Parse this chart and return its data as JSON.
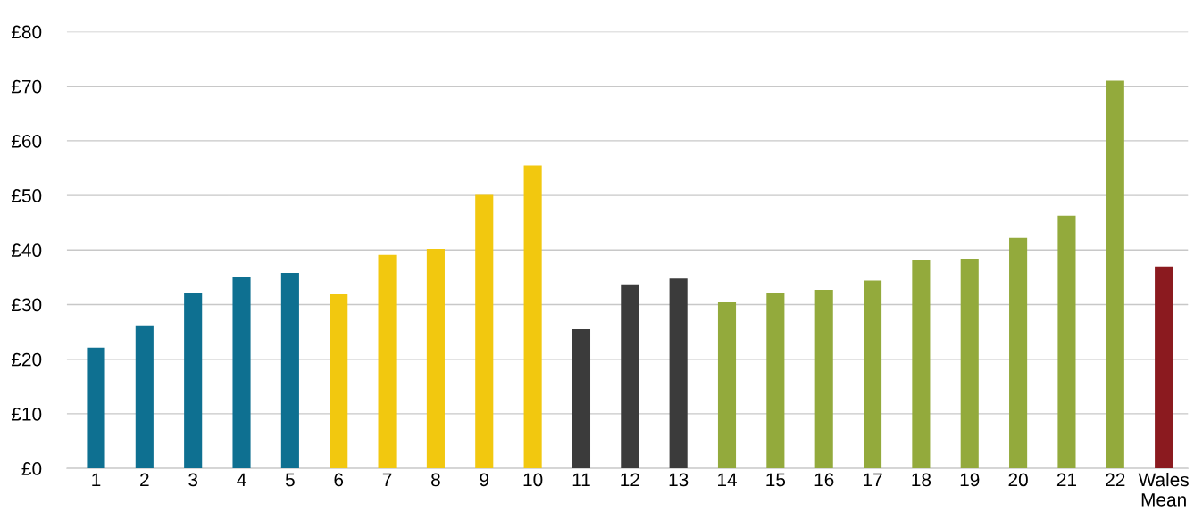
{
  "chart_data": {
    "type": "bar",
    "categories": [
      "1",
      "2",
      "3",
      "4",
      "5",
      "6",
      "7",
      "8",
      "9",
      "10",
      "11",
      "12",
      "13",
      "14",
      "15",
      "16",
      "17",
      "18",
      "19",
      "20",
      "21",
      "22",
      "Wales Mean"
    ],
    "values": [
      22.1,
      26.2,
      32.2,
      35.0,
      35.8,
      31.9,
      39.1,
      40.2,
      50.1,
      55.5,
      25.5,
      33.7,
      34.8,
      30.4,
      32.2,
      32.7,
      34.4,
      38.1,
      38.4,
      42.2,
      46.3,
      71.0,
      37.0
    ],
    "colors": [
      "#0e7091",
      "#0e7091",
      "#0e7091",
      "#0e7091",
      "#0e7091",
      "#f2c80f",
      "#f2c80f",
      "#f2c80f",
      "#f2c80f",
      "#f2c80f",
      "#3b3b3b",
      "#3b3b3b",
      "#3b3b3b",
      "#93aa3c",
      "#93aa3c",
      "#93aa3c",
      "#93aa3c",
      "#93aa3c",
      "#93aa3c",
      "#93aa3c",
      "#93aa3c",
      "#93aa3c",
      "#8b1a1f"
    ],
    "ylim": [
      0,
      80
    ],
    "yticks": [
      {
        "value": 0,
        "label": "£0"
      },
      {
        "value": 10,
        "label": "£10"
      },
      {
        "value": 20,
        "label": "£20"
      },
      {
        "value": 30,
        "label": "£30"
      },
      {
        "value": 40,
        "label": "£40"
      },
      {
        "value": 50,
        "label": "£50"
      },
      {
        "value": 60,
        "label": "£60"
      },
      {
        "value": 70,
        "label": "£70"
      },
      {
        "value": 80,
        "label": "£80"
      }
    ],
    "grid": "y",
    "legend": false
  }
}
